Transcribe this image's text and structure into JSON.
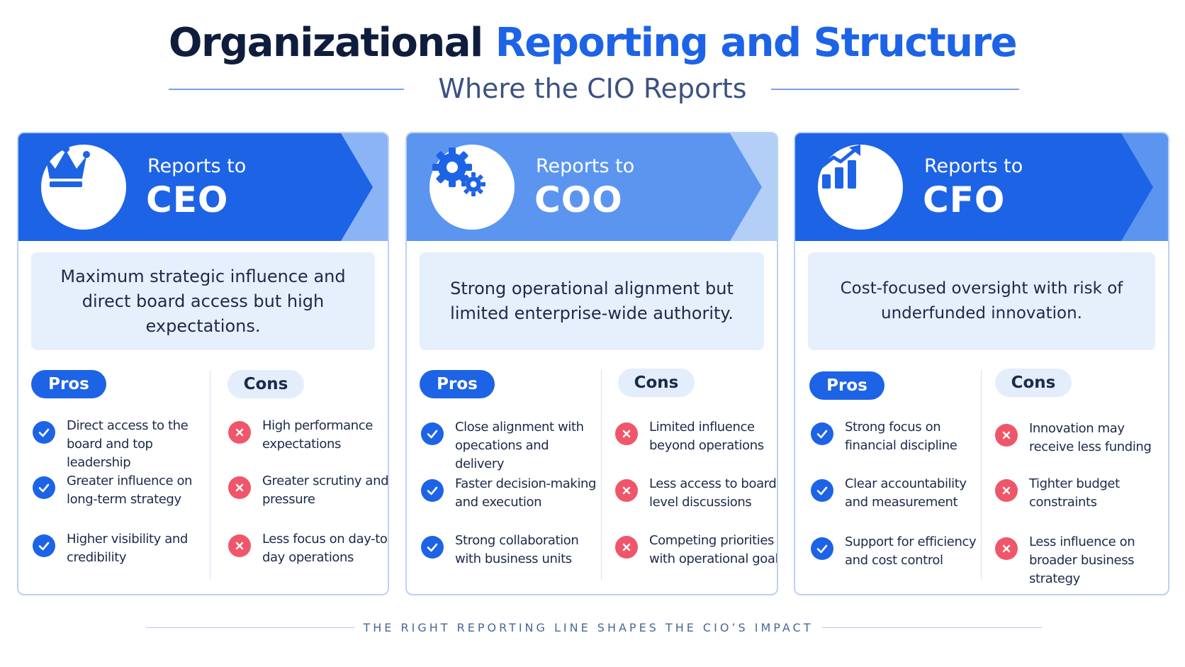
{
  "title": {
    "main": "Organizational",
    "accent": "Reporting and Structure"
  },
  "subtitle": "Where the CIO Reports",
  "footer": "THE RIGHT REPORTING LINE SHAPES THE CIO’S IMPACT",
  "colors": {
    "primary_blue": "#1d63e6",
    "light_blue": "#e6effc",
    "dark_navy": "#0f1d3d",
    "cross_red": "#f0566a"
  },
  "cards": [
    {
      "reports_to": "Reports to",
      "role": "CEO",
      "icon": "crown-icon",
      "summary": "Maximum strategic influence and direct board access but high expectations.",
      "pros_label": "Pros",
      "cons_label": "Cons",
      "pros": [
        "Direct access to the board and top leadership",
        "Greater influence on long-term strategy",
        "Higher visibility and credibility"
      ],
      "cons": [
        "High performance expectations",
        "Greater scrutiny and pressure",
        "Less focus on day-to-day operations"
      ]
    },
    {
      "reports_to": "Reports to",
      "role": "COO",
      "icon": "gears-icon",
      "summary": "Strong operational alignment but limited enterprise-wide authority.",
      "pros_label": "Pros",
      "cons_label": "Cons",
      "pros": [
        "Close alignment with opecations and delivery",
        "Faster decision-making and execution",
        "Strong collaboration with business units"
      ],
      "cons": [
        "Limited influence beyond operations",
        "Less access to board-level discussions",
        "Competing priorities with operational goals"
      ]
    },
    {
      "reports_to": "Reports to",
      "role": "CFO",
      "icon": "growth-chart-icon",
      "summary": "Cost-focused oversight with risk of underfunded innovation.",
      "pros_label": "Pros",
      "cons_label": "Cons",
      "pros": [
        "Strong focus on financial discipline",
        "Clear accountability and measurement",
        "Support for efficiency and cost control"
      ],
      "cons": [
        "Innovation may receive less funding",
        "Tighter budget constraints",
        "Less influence on broader business strategy"
      ]
    }
  ]
}
